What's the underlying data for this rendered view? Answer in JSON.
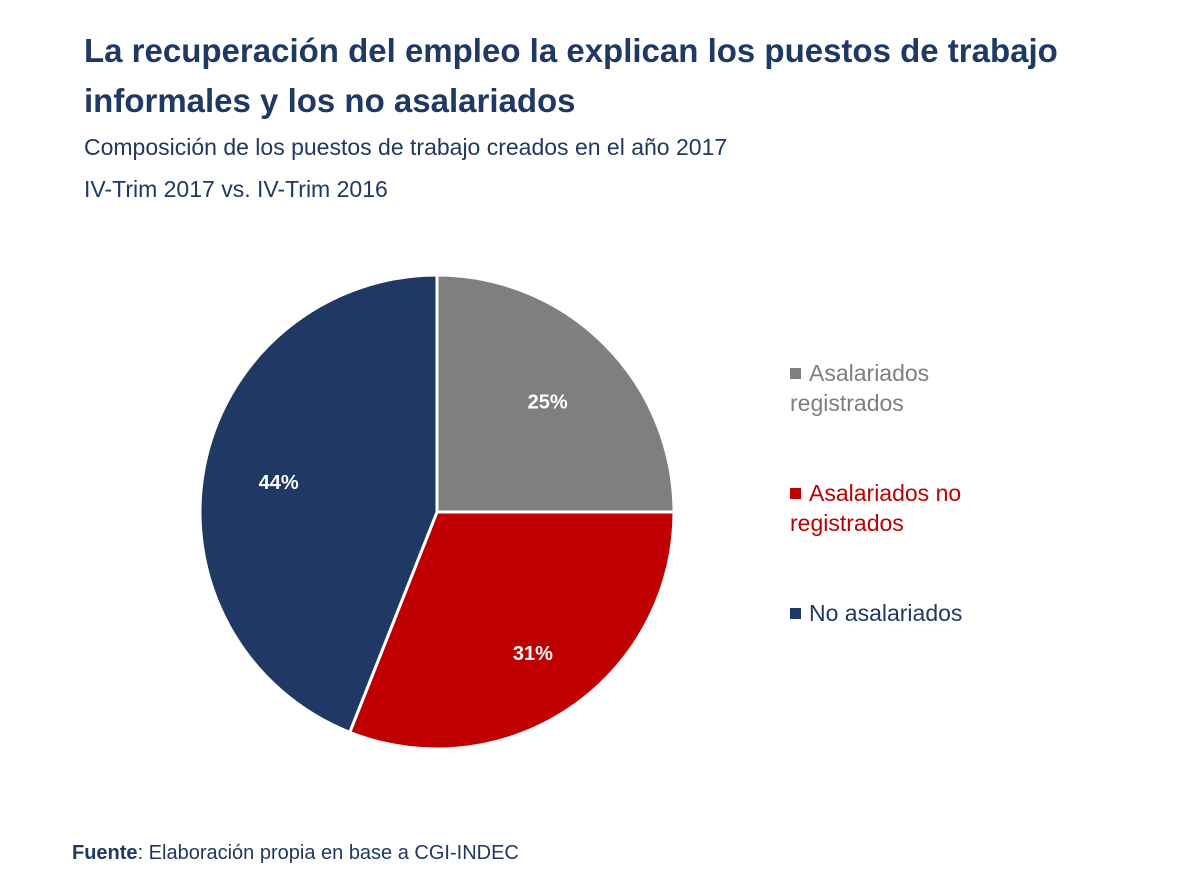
{
  "chart_data": {
    "type": "pie",
    "title": "La recuperación del empleo la explican los puestos de trabajo informales y los no asalariados",
    "subtitle": "Composición de los puestos de trabajo creados en el año 2017",
    "subtitle2": "IV-Trim 2017 vs. IV-Trim 2016",
    "slices": [
      {
        "name": "Asalariados registrados",
        "value": 25,
        "label": "25%",
        "color": "#7f7f7f"
      },
      {
        "name": "Asalariados no registrados",
        "value": 31,
        "label": "31%",
        "color": "#c00000"
      },
      {
        "name": "No asalariados",
        "value": 44,
        "label": "44%",
        "color": "#1f3864"
      }
    ],
    "legend_placement": "right",
    "start_angle": "12 o'clock, clockwise"
  },
  "source": {
    "label": "Fuente",
    "text": ": Elaboración propia en base a CGI-INDEC"
  }
}
